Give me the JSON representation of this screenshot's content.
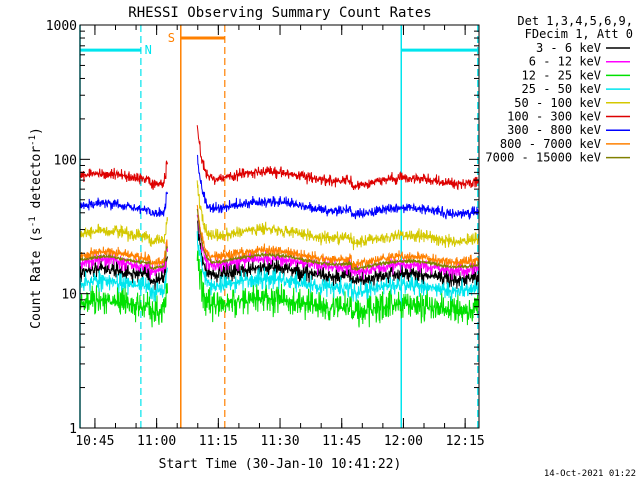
{
  "chart_data": {
    "type": "line",
    "title": "RHESSI Observing Summary Count Rates",
    "xlabel": "Start Time (30-Jan-10 10:41:22)",
    "ylabel_parts": [
      "Count Rate (s",
      "-1",
      " detector",
      "-1",
      ")"
    ],
    "yscale": "log",
    "ylim": [
      1,
      1000
    ],
    "xlim_minutes": [
      0,
      97
    ],
    "y_ticks": [
      {
        "value": 1,
        "label": "1"
      },
      {
        "value": 10,
        "label": "10"
      },
      {
        "value": 100,
        "label": "100"
      },
      {
        "value": 1000,
        "label": "1000"
      }
    ],
    "x_ticks": [
      {
        "minute": 3.63,
        "label": "10:45"
      },
      {
        "minute": 18.63,
        "label": "11:00"
      },
      {
        "minute": 33.63,
        "label": "11:15"
      },
      {
        "minute": 48.63,
        "label": "11:30"
      },
      {
        "minute": 63.63,
        "label": "11:45"
      },
      {
        "minute": 78.63,
        "label": "12:00"
      },
      {
        "minute": 93.63,
        "label": "12:15"
      }
    ],
    "legend_header": [
      "Det 1,3,4,5,6,9,",
      "FDecim 1, Att 0"
    ],
    "series": [
      {
        "name": "3 - 6 keV",
        "color": "#000000",
        "base": 14.5,
        "noise": 0.05
      },
      {
        "name": "6 - 12 keV",
        "color": "#ff00ff",
        "base": 17,
        "noise": 0.04
      },
      {
        "name": "12 - 25 keV",
        "color": "#00e000",
        "base": 8.5,
        "noise": 0.08
      },
      {
        "name": "25 - 50 keV",
        "color": "#00e5ee",
        "base": 12,
        "noise": 0.05
      },
      {
        "name": "50 - 100 keV",
        "color": "#d4c800",
        "base": 28,
        "noise": 0.035
      },
      {
        "name": "100 - 300 keV",
        "color": "#dd0000",
        "base": 75,
        "noise": 0.03
      },
      {
        "name": "300 - 800 keV",
        "color": "#0000ff",
        "base": 45,
        "noise": 0.03
      },
      {
        "name": "800 - 7000 keV",
        "color": "#ff8000",
        "base": 19.5,
        "noise": 0.03
      },
      {
        "name": "7000 - 15000 keV",
        "color": "#808000",
        "base": 18,
        "noise": 0.01
      }
    ],
    "data_intervals_minutes": [
      [
        0,
        21.3
      ],
      [
        28.5,
        97
      ]
    ],
    "spike_at_start_of_second_interval": 1.6,
    "night_markers": {
      "label": "N",
      "color": "#00e5ee",
      "level": 650,
      "solid_minutes": [
        0,
        78.1
      ],
      "dashed_minutes": [
        14.8,
        96.7
      ],
      "bar_intervals": [
        [
          0,
          14.8
        ],
        [
          78.1,
          96.7
        ]
      ]
    },
    "saa_marker": {
      "label": "S",
      "color": "#ff8000",
      "level": 800,
      "solid_minutes": [
        24.5
      ],
      "dashed_minutes": [
        35.2
      ],
      "bar_intervals": [
        [
          24.5,
          35.2
        ]
      ]
    },
    "timestamp": "14-Oct-2021 01:22"
  }
}
